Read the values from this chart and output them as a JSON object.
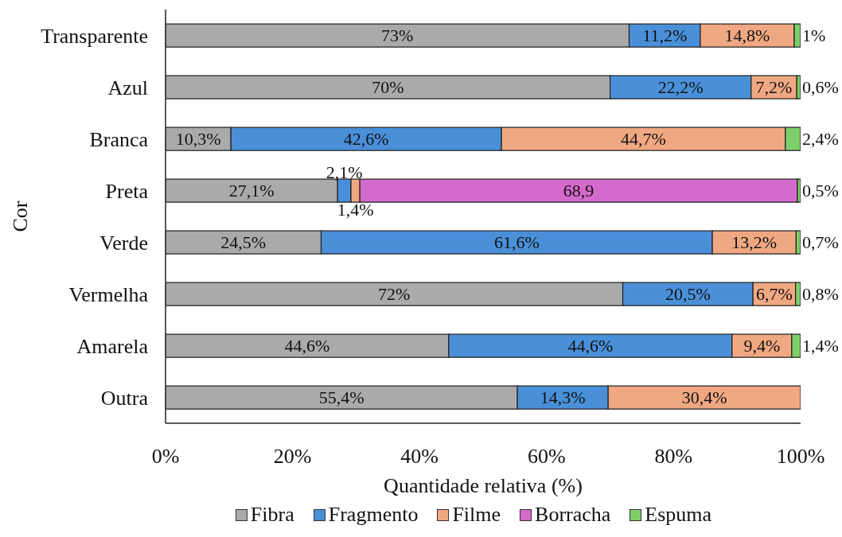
{
  "chart_data": {
    "type": "bar",
    "orientation": "horizontal",
    "stacked": true,
    "xlabel": "Quantidade relativa (%)",
    "ylabel": "Cor",
    "legend": "bottom",
    "categories": [
      "Transparente",
      "Azul",
      "Branca",
      "Preta",
      "Verde",
      "Vermelha",
      "Amarela",
      "Outra"
    ],
    "series": [
      {
        "name": "Fibra",
        "color": "#aaaaaa",
        "values": [
          73,
          70,
          10.3,
          27.1,
          24.5,
          72,
          44.6,
          55.4
        ],
        "value_labels": [
          "73%",
          "70%",
          "10,3%",
          "27,1%",
          "24,5%",
          "72%",
          "44,6%",
          "55,4%"
        ]
      },
      {
        "name": "Fragmento",
        "color": "#4a90d9",
        "values": [
          11.2,
          22.2,
          42.6,
          2.1,
          61.6,
          20.5,
          44.6,
          14.3
        ],
        "value_labels": [
          "11,2%",
          "22,2%",
          "42,6%",
          "2,1%",
          "61,6%",
          "20,5%",
          "44,6%",
          "14,3%"
        ]
      },
      {
        "name": "Filme",
        "color": "#f0a882",
        "values": [
          14.8,
          7.2,
          44.7,
          1.4,
          13.2,
          6.7,
          9.4,
          30.4
        ],
        "value_labels": [
          "14,8%",
          "7,2%",
          "44,7%",
          "1,4%",
          "13,2%",
          "6,7%",
          "9,4%",
          "30,4%"
        ]
      },
      {
        "name": "Borracha",
        "color": "#d46acb",
        "values": [
          null,
          null,
          null,
          68.9,
          null,
          null,
          null,
          null
        ],
        "value_labels": [
          null,
          null,
          null,
          "68,9",
          null,
          null,
          null,
          null
        ]
      },
      {
        "name": "Espuma",
        "color": "#7ecf6a",
        "values": [
          1,
          0.6,
          2.4,
          0.5,
          0.7,
          0.8,
          1.4,
          null
        ],
        "value_labels": [
          "1%",
          "0,6%",
          "2,4%",
          "0,5%",
          "0,7%",
          "0,8%",
          "1,4%",
          null
        ]
      }
    ],
    "xlim": [
      0,
      100
    ],
    "xticks": [
      {
        "value": 0,
        "label": "0%"
      },
      {
        "value": 20,
        "label": "20%"
      },
      {
        "value": 40,
        "label": "40%"
      },
      {
        "value": 60,
        "label": "60%"
      },
      {
        "value": 80,
        "label": "80%"
      },
      {
        "value": 100,
        "label": "100%"
      }
    ]
  }
}
